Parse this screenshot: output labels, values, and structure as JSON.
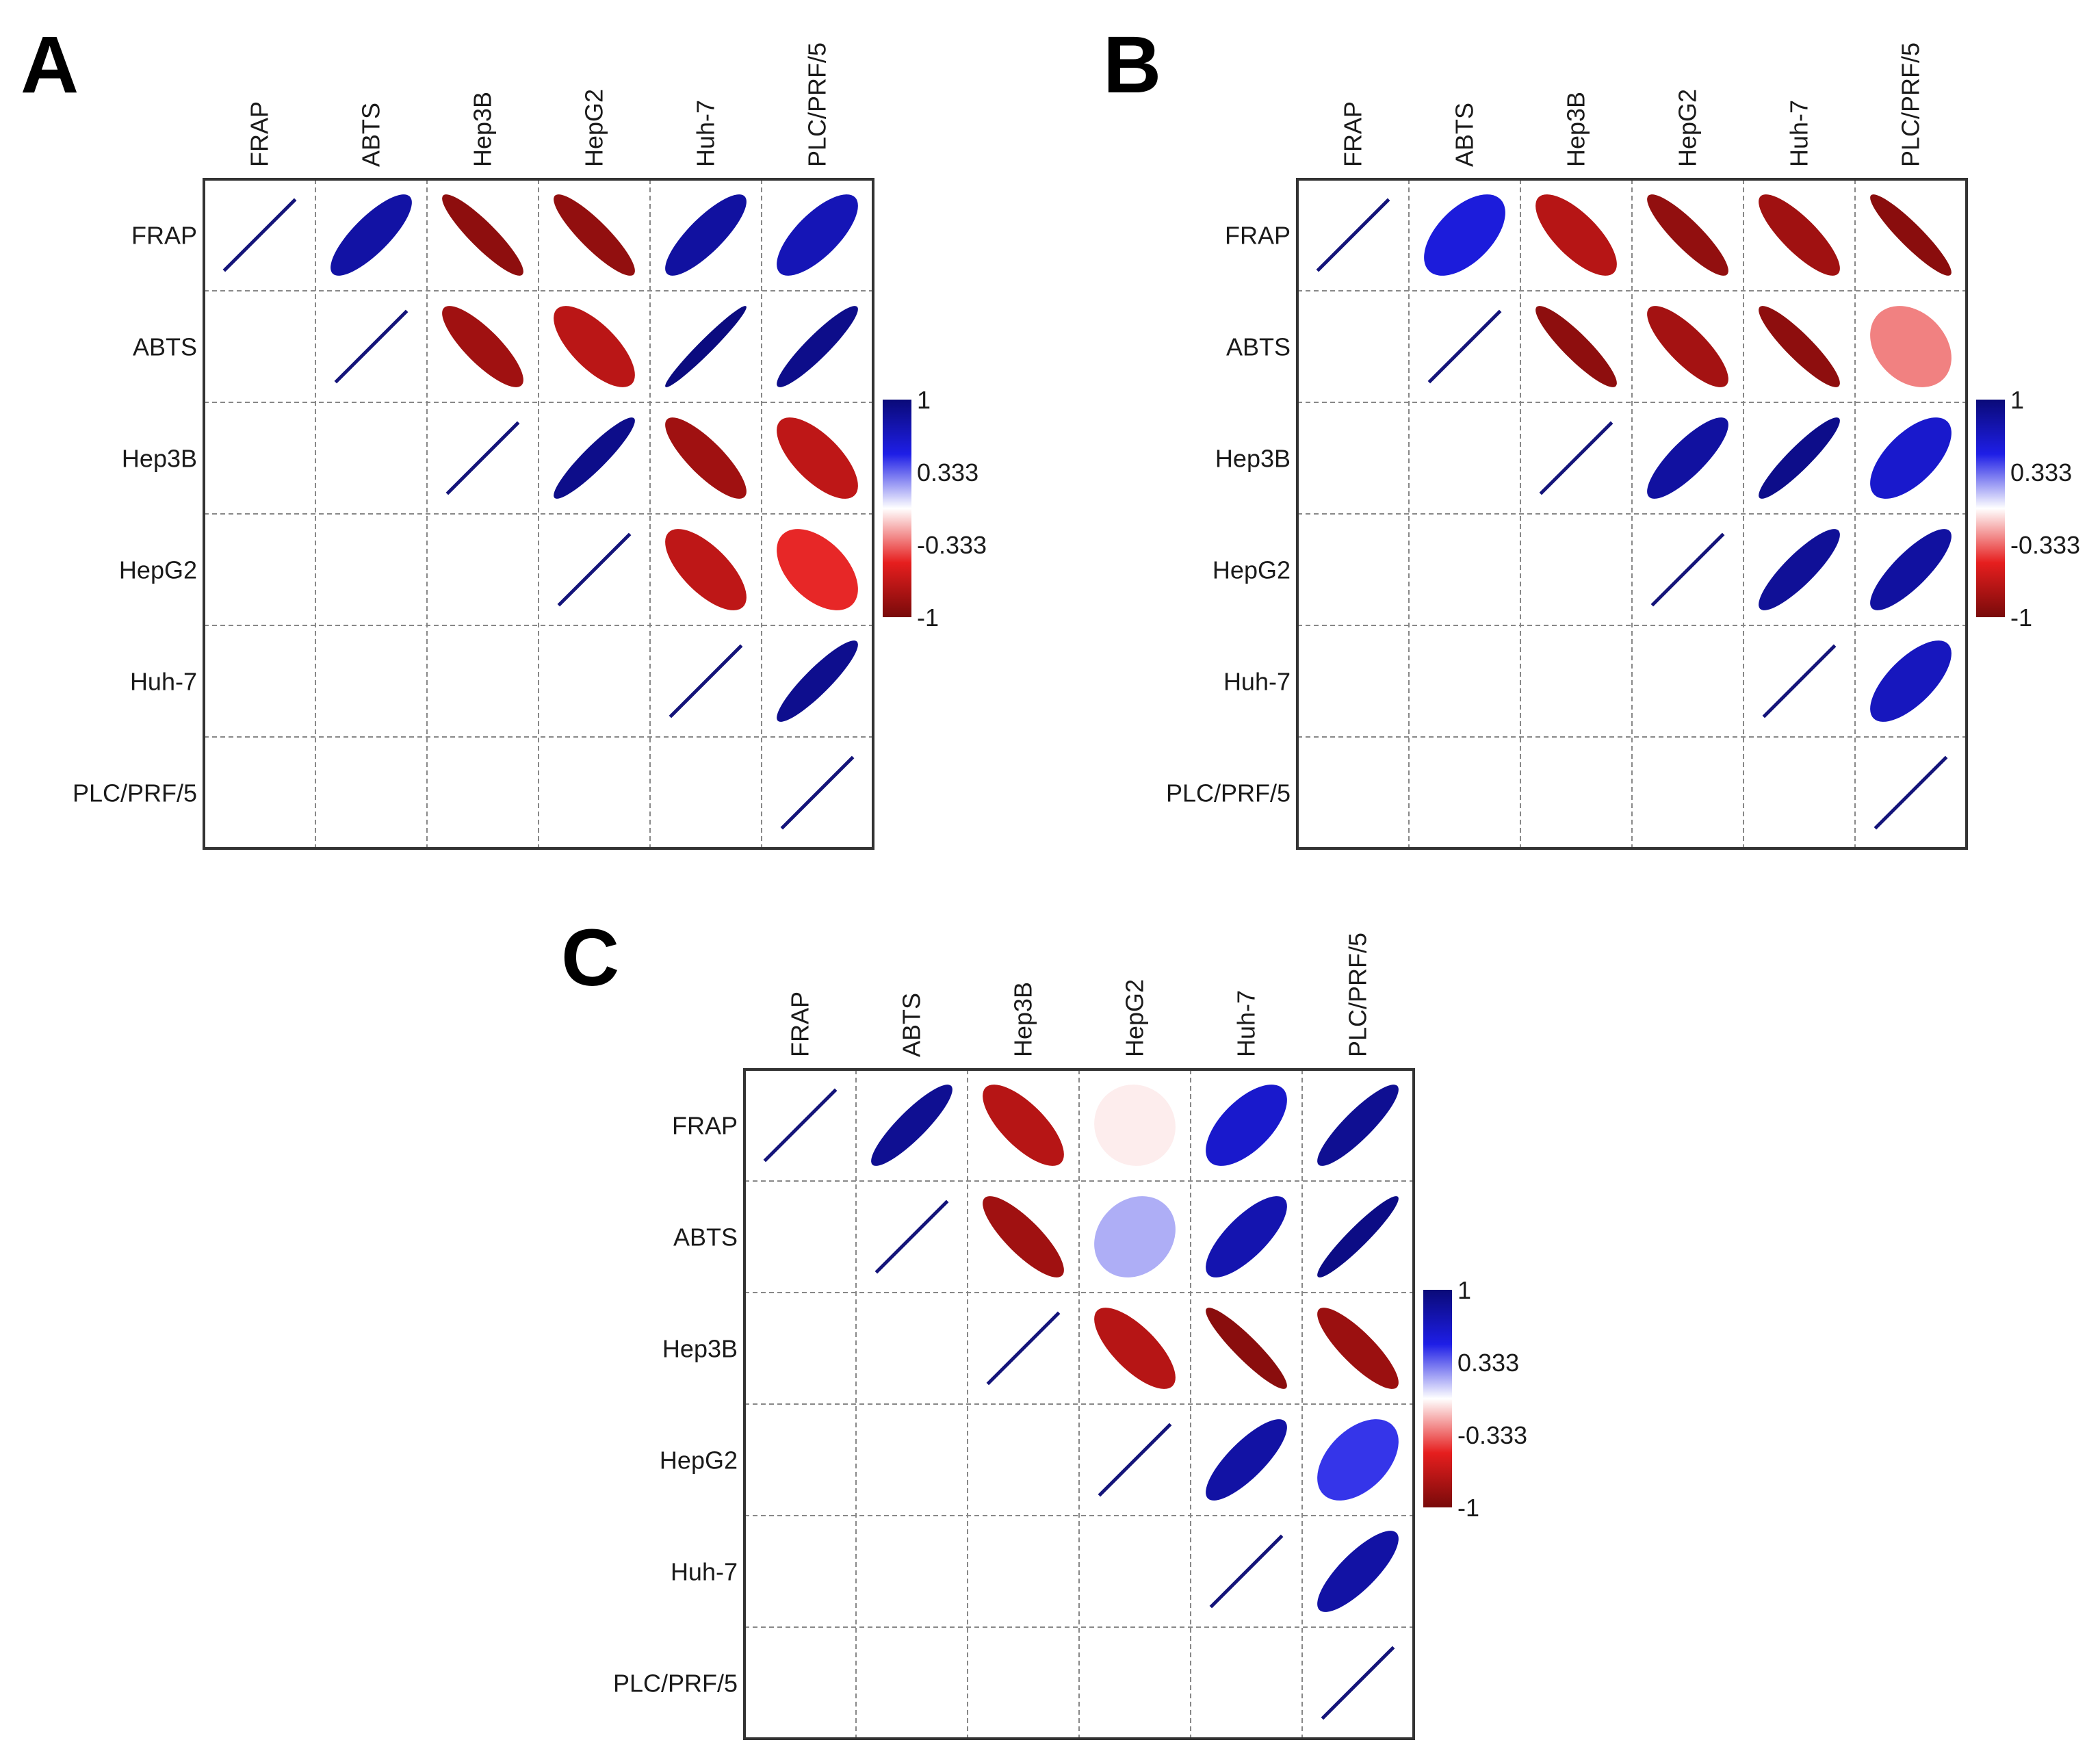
{
  "chart_data": [
    {
      "type": "heatmap",
      "subtype": "correlation-ellipse-upper",
      "panel": "A",
      "variables": [
        "FRAP",
        "ABTS",
        "Hep3B",
        "HepG2",
        "Huh-7",
        "PLC/PRF/5"
      ],
      "matrix": [
        [
          1,
          0.8,
          -0.9,
          -0.88,
          0.82,
          0.72
        ],
        [
          null,
          1,
          -0.82,
          -0.7,
          0.97,
          0.92
        ],
        [
          null,
          null,
          1,
          0.92,
          -0.82,
          -0.68
        ],
        [
          null,
          null,
          null,
          1,
          -0.68,
          -0.48
        ],
        [
          null,
          null,
          null,
          null,
          1,
          0.9
        ],
        [
          null,
          null,
          null,
          null,
          null,
          1
        ]
      ],
      "colorbar": {
        "ticks": [
          "1",
          "0.333",
          "-0.333",
          "-1"
        ],
        "range": [
          -1,
          1
        ]
      }
    },
    {
      "type": "heatmap",
      "subtype": "correlation-ellipse-upper",
      "panel": "B",
      "variables": [
        "FRAP",
        "ABTS",
        "Hep3B",
        "HepG2",
        "Huh-7",
        "PLC/PRF/5"
      ],
      "matrix": [
        [
          1,
          0.55,
          -0.72,
          -0.88,
          -0.82,
          -0.92
        ],
        [
          null,
          1,
          -0.9,
          -0.8,
          -0.9,
          -0.28
        ],
        [
          null,
          null,
          1,
          0.82,
          0.92,
          0.62
        ],
        [
          null,
          null,
          null,
          1,
          0.86,
          0.82
        ],
        [
          null,
          null,
          null,
          null,
          1,
          0.68
        ],
        [
          null,
          null,
          null,
          null,
          null,
          1
        ]
      ],
      "colorbar": {
        "ticks": [
          "1",
          "0.333",
          "-0.333",
          "-1"
        ],
        "range": [
          -1,
          1
        ]
      }
    },
    {
      "type": "heatmap",
      "subtype": "correlation-ellipse-upper",
      "panel": "C",
      "variables": [
        "FRAP",
        "ABTS",
        "Hep3B",
        "HepG2",
        "Huh-7",
        "PLC/PRF/5"
      ],
      "matrix": [
        [
          1,
          0.88,
          -0.72,
          -0.04,
          0.62,
          0.88
        ],
        [
          null,
          1,
          -0.82,
          0.18,
          0.75,
          0.94
        ],
        [
          null,
          null,
          1,
          -0.72,
          -0.92,
          -0.84
        ],
        [
          null,
          null,
          null,
          1,
          0.8,
          0.45
        ],
        [
          null,
          null,
          null,
          null,
          1,
          0.8
        ],
        [
          null,
          null,
          null,
          null,
          null,
          1
        ]
      ],
      "colorbar": {
        "ticks": [
          "1",
          "0.333",
          "-0.333",
          "-1"
        ],
        "range": [
          -1,
          1
        ]
      }
    }
  ],
  "colors": {
    "pos_strong": "#0a0a78",
    "pos_mid": "#1e1ee6",
    "neutral": "#ffffff",
    "neg_mid": "#e61e1e",
    "neg_strong": "#780a0a",
    "diagonal_line": "#14147a",
    "grid": "#888888",
    "frame": "#333333"
  }
}
